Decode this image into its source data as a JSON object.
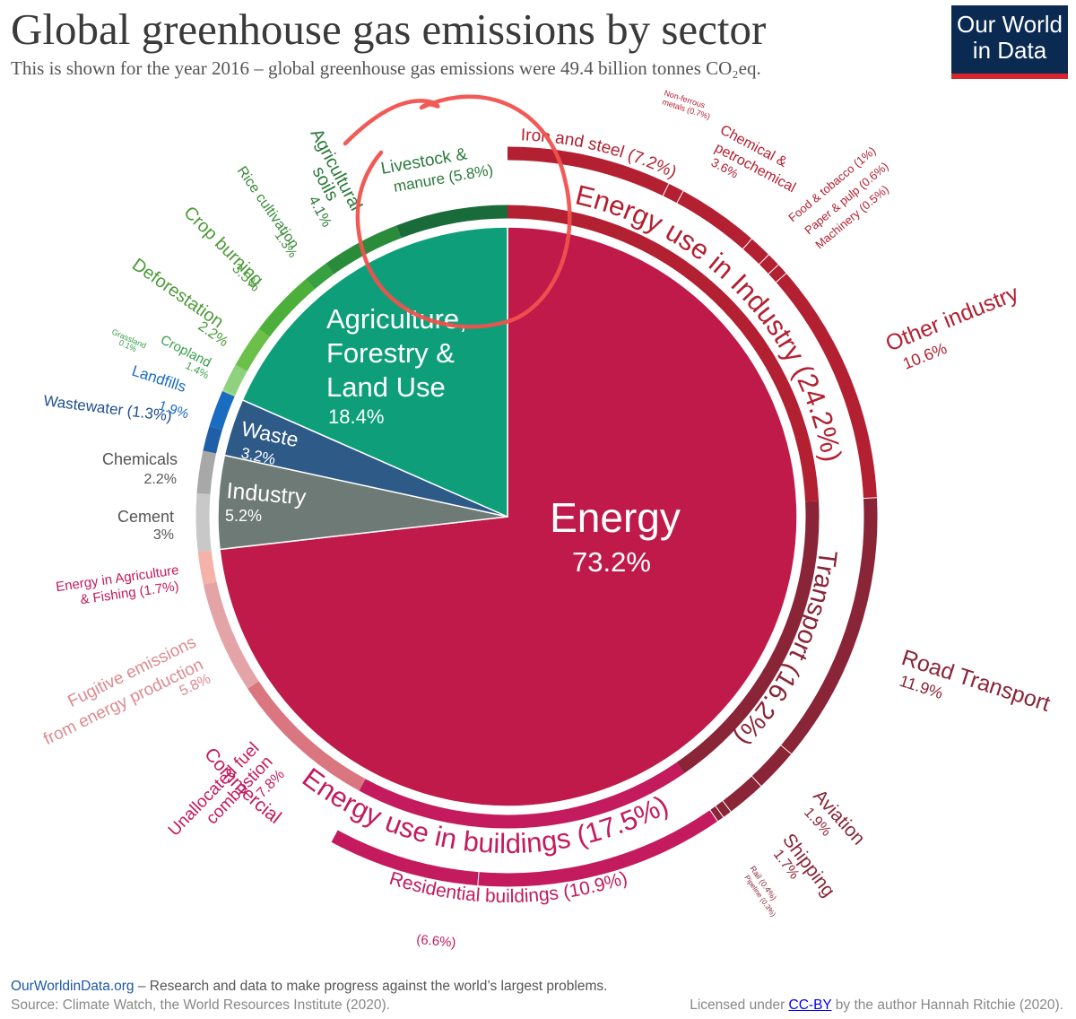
{
  "header": {
    "title": "Global greenhouse gas emissions by sector",
    "subtitle": "This is shown for the year 2016 – global greenhouse gas emissions were 49.4 billion tonnes CO₂eq.",
    "logo_line1": "Our World",
    "logo_line2": "in Data"
  },
  "footer": {
    "site": "OurWorldinData.org",
    "tagline": " – Research and data to make progress against the world’s largest problems.",
    "source": "Source: Climate Watch, the World Resources Institute (2020).",
    "license_prefix": "Licensed under ",
    "license": "CC-BY",
    "license_suffix": " by the author Hannah Ritchie  (2020)."
  },
  "colors": {
    "energy": "#bf1a4a",
    "agriculture": "#0e9f7a",
    "waste": "#2e5a88",
    "industry": "#6e7a76",
    "industry_ring": "#b32031",
    "transport_ring": "#8a2437",
    "buildings_ring": "#c41a5e",
    "annotation": "#f0514d"
  },
  "chart_data": {
    "type": "pie",
    "title": "Global greenhouse gas emissions by sector",
    "year": 2016,
    "total": "49.4 billion tonnes CO₂eq.",
    "inner": [
      {
        "label": "Energy",
        "value_text": "73.2%",
        "value": 73.2
      },
      {
        "label": "Agriculture, Forestry & Land Use",
        "value_text": "18.4%",
        "value": 18.4
      },
      {
        "label": "Waste",
        "value_text": "3.2%",
        "value": 3.2
      },
      {
        "label": "Industry",
        "value_text": "5.2%",
        "value": 5.2
      }
    ],
    "middle": [
      {
        "label": "Energy use in Industry (24.2%)",
        "value": 24.2
      },
      {
        "label": "Transport (16.2%)",
        "value": 16.2
      },
      {
        "label": "Energy use in buildings (17.5%)",
        "value": 17.5
      },
      {
        "label": "Unallocated fuel combustion",
        "value_text": "7.8%",
        "value": 7.8
      },
      {
        "label": "Fugitive emissions from energy production",
        "value_text": "5.8%",
        "value": 5.8
      },
      {
        "label": "Energy in Agriculture & Fishing (1.7%)",
        "value": 1.7
      },
      {
        "label": "Cement",
        "value_text": "3%",
        "value": 3
      },
      {
        "label": "Chemicals",
        "value_text": "2.2%",
        "value": 2.2
      },
      {
        "label": "Wastewater (1.3%)",
        "value": 1.3
      },
      {
        "label": "Landfills",
        "value_text": "1.9%",
        "value": 1.9
      },
      {
        "label": "Grassland",
        "value_text": "0.1%",
        "value": 0.1
      },
      {
        "label": "Cropland",
        "value_text": "1.4%",
        "value": 1.4
      },
      {
        "label": "Deforestation",
        "value_text": "2.2%",
        "value": 2.2
      },
      {
        "label": "Crop burning",
        "value_text": "3.5%",
        "value": 3.5
      },
      {
        "label": "Rice cultivation",
        "value_text": "1.3%",
        "value": 1.3
      },
      {
        "label": "Agricultural soils",
        "value_text": "4.1%",
        "value": 4.1
      },
      {
        "label": "Livestock & manure (5.8%)",
        "value": 5.8
      }
    ],
    "outer": [
      {
        "label": "Iron and steel (7.2%)",
        "value": 7.2
      },
      {
        "label": "Non-ferrous metals (0.7%)",
        "value": 0.7
      },
      {
        "label": "Chemical & petrochemical",
        "value_text": "3.6%",
        "value": 3.6
      },
      {
        "label": "Food & tobacco (1%)",
        "value": 1.0
      },
      {
        "label": "Paper & pulp (0.6%)",
        "value": 0.6
      },
      {
        "label": "Machinery (0.5%)",
        "value": 0.5
      },
      {
        "label": "Other industry",
        "value_text": "10.6%",
        "value": 10.6
      },
      {
        "label": "Road Transport",
        "value_text": "11.9%",
        "value": 11.9
      },
      {
        "label": "Aviation",
        "value_text": "1.9%",
        "value": 1.9
      },
      {
        "label": "Shipping",
        "value_text": "1.7%",
        "value": 1.7
      },
      {
        "label": "Rail (0.4%)",
        "value": 0.4
      },
      {
        "label": "Pipeline (0.3%)",
        "value": 0.3
      },
      {
        "label": "Residential buildings (10.9%)",
        "value": 10.9
      },
      {
        "label": "Commercial",
        "value_text": "(6.6%)",
        "value": 6.6
      }
    ],
    "annotation": "hand-drawn red circle around Livestock & manure (5.8%)"
  }
}
